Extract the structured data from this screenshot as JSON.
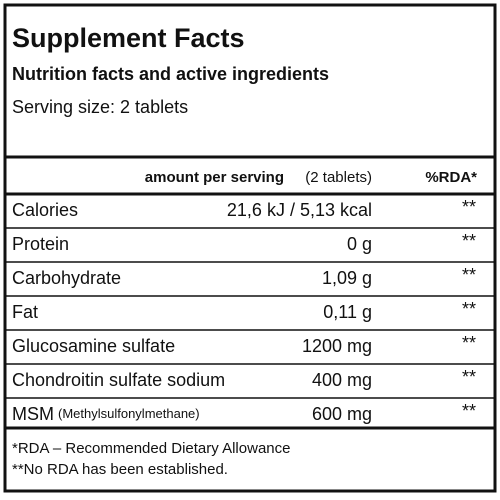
{
  "header": {
    "title": "Supplement Facts",
    "subtitle": "Nutrition facts and active ingredients",
    "serving_size": "Serving size: 2 tablets"
  },
  "table": {
    "columns": [
      "amount per serving",
      "(2 tablets)",
      "%RDA*"
    ],
    "rows": [
      {
        "name": "Calories",
        "amount": "21,6 kJ / 5,13 kcal",
        "rda": "**"
      },
      {
        "name": "Protein",
        "amount": "0 g",
        "rda": "**"
      },
      {
        "name": "Carbohydrate",
        "amount": "1,09 g",
        "rda": "**"
      },
      {
        "name": "Fat",
        "amount": "0,11 g",
        "rda": "**"
      },
      {
        "name": "Glucosamine sulfate",
        "amount": "1200 mg",
        "rda": "**"
      },
      {
        "name": "Chondroitin sulfate sodium",
        "amount": "400 mg",
        "rda": "**"
      },
      {
        "name": "MSM",
        "name_note": "(Methylsulfonylmethane)",
        "amount": "600 mg",
        "rda": "**"
      }
    ]
  },
  "footnotes": [
    "*RDA – Recommended Dietary Allowance",
    "**No RDA has been established."
  ]
}
